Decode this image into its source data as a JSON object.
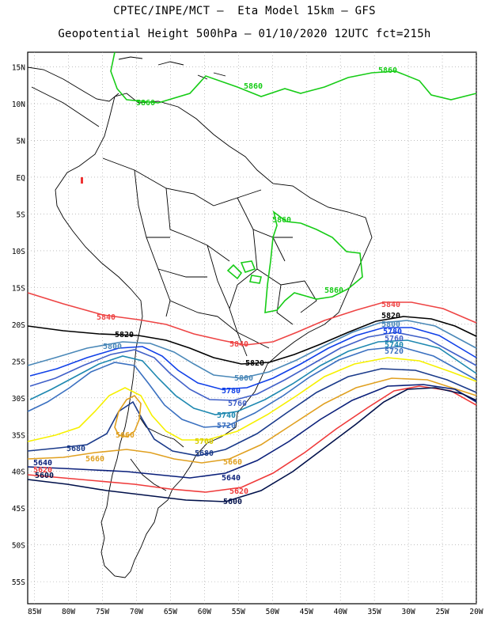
{
  "title_line1": "CPTEC/INPE/MCT –  Eta Model 15km – GFS",
  "title_line2": "Geopotential Height 500hPa – 01/10/2020 12UTC fct=215h",
  "axes": {
    "lon_labels": [
      "85W",
      "80W",
      "75W",
      "70W",
      "65W",
      "60W",
      "55W",
      "50W",
      "45W",
      "40W",
      "35W",
      "30W",
      "25W",
      "20W"
    ],
    "lat_labels": [
      "15N",
      "10N",
      "5N",
      "EQ",
      "5S",
      "10S",
      "15S",
      "20S",
      "25S",
      "30S",
      "35S",
      "40S",
      "45S",
      "50S",
      "55S"
    ],
    "lon_range": [
      -86,
      -20
    ],
    "lat_range": [
      17,
      -58
    ],
    "grid": true
  },
  "colors": {
    "c5600": "#00104a",
    "c5620": "#ef3a3a",
    "c5640": "#0a1f7a",
    "c5660": "#e0a020",
    "c5680": "#1a3a8a",
    "c5700": "#f6f000",
    "c5720": "#3a70c0",
    "c5740": "#1e88b0",
    "c5760": "#4060c8",
    "c5780": "#1040e8",
    "c5800": "#4a88b8",
    "c5820": "#000000",
    "c5840": "#ee4444",
    "c5860": "#16cc16"
  },
  "contours": [
    {
      "value": "5860",
      "color": "#16cc16",
      "labels": [
        "5860",
        "5860",
        "5860",
        "5860",
        "5860"
      ]
    },
    {
      "value": "5840",
      "color": "#ee4444",
      "labels": [
        "5840",
        "5840",
        "5840"
      ]
    },
    {
      "value": "5820",
      "color": "#000000",
      "labels": [
        "5820",
        "5820",
        "5820"
      ]
    },
    {
      "value": "5800",
      "color": "#4a88b8",
      "labels": [
        "5800",
        "5800",
        "5800"
      ]
    },
    {
      "value": "5780",
      "color": "#1040e8",
      "labels": [
        "5780",
        "5780"
      ]
    },
    {
      "value": "5760",
      "color": "#4060c8",
      "labels": [
        "5760",
        "5760"
      ]
    },
    {
      "value": "5740",
      "color": "#1e88b0",
      "labels": [
        "5740",
        "5740"
      ]
    },
    {
      "value": "5720",
      "color": "#3a70c0",
      "labels": [
        "5720",
        "5720"
      ]
    },
    {
      "value": "5700",
      "color": "#f6f000",
      "labels": [
        "5700"
      ]
    },
    {
      "value": "5680",
      "color": "#1a3a8a",
      "labels": [
        "5680",
        "5680"
      ]
    },
    {
      "value": "5660",
      "color": "#e0a020",
      "labels": [
        "5660",
        "5660",
        "5660"
      ]
    },
    {
      "value": "5640",
      "color": "#0a1f7a",
      "labels": [
        "5640",
        "5640"
      ]
    },
    {
      "value": "5620",
      "color": "#ef3a3a",
      "labels": [
        "5620",
        "5620"
      ]
    },
    {
      "value": "5600",
      "color": "#00104a",
      "labels": [
        "5600",
        "5600"
      ]
    }
  ]
}
